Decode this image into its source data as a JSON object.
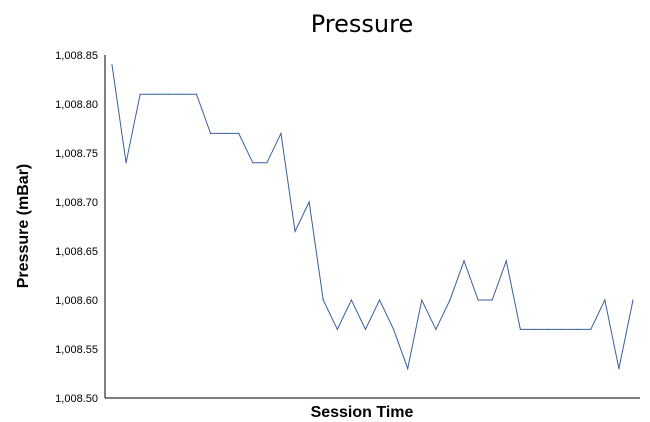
{
  "chart_data": {
    "type": "line",
    "title": "Pressure",
    "xlabel": "Session Time",
    "ylabel": "Pressure (mBar)",
    "ylim": [
      1008.5,
      1008.85
    ],
    "yticks": [
      "1,008.50",
      "1,008.55",
      "1,008.60",
      "1,008.65",
      "1,008.70",
      "1,008.75",
      "1,008.80",
      "1,008.85"
    ],
    "ytick_values": [
      1008.5,
      1008.55,
      1008.6,
      1008.65,
      1008.7,
      1008.75,
      1008.8,
      1008.85
    ],
    "grid": false,
    "line_color": "#3a5f9a",
    "series": [
      {
        "values": [
          1008.84,
          1008.74,
          1008.81,
          1008.81,
          1008.81,
          1008.81,
          1008.81,
          1008.77,
          1008.77,
          1008.77,
          1008.74,
          1008.74,
          1008.77,
          1008.67,
          1008.7,
          1008.6,
          1008.57,
          1008.6,
          1008.57,
          1008.6,
          1008.57,
          1008.53,
          1008.6,
          1008.57,
          1008.6,
          1008.64,
          1008.6,
          1008.6,
          1008.64,
          1008.57,
          1008.57,
          1008.57,
          1008.57,
          1008.57,
          1008.57,
          1008.6,
          1008.53,
          1008.6
        ]
      }
    ]
  }
}
